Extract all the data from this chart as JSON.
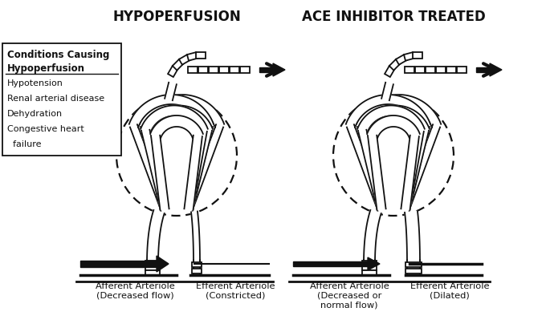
{
  "title_left": "HYPOPERFUSION",
  "title_right": "ACE INHIBITOR TREATED",
  "box_title_bold": "Conditions Causing\nHypoperfusion",
  "box_items": [
    "Hypotension",
    "Renal arterial disease",
    "Dehydration",
    "Congestive heart",
    "  failure"
  ],
  "label_aff_left": "Afferent Arteriole\n(Decreased flow)",
  "label_eff_left": "Efferent Arteriole\n(Constricted)",
  "label_aff_right": "Afferent Arteriole\n(Decreased or\nnormal flow)",
  "label_eff_right": "Efferent Arteriole\n(Dilated)",
  "bg_color": "#ffffff",
  "line_color": "#111111",
  "fill_color": "#ffffff"
}
